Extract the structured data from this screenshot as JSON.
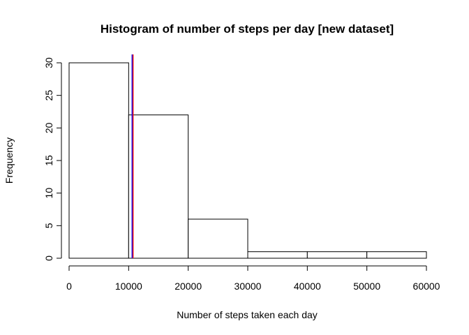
{
  "chart_data": {
    "type": "bar",
    "title": "Histogram of number of steps per day [new dataset]",
    "xlabel": "Number of steps taken each day",
    "ylabel": "Frequency",
    "bins": [
      {
        "start": 0,
        "end": 10000,
        "count": 30
      },
      {
        "start": 10000,
        "end": 20000,
        "count": 22
      },
      {
        "start": 20000,
        "end": 30000,
        "count": 6
      },
      {
        "start": 30000,
        "end": 40000,
        "count": 1
      },
      {
        "start": 40000,
        "end": 50000,
        "count": 1
      },
      {
        "start": 50000,
        "end": 60000,
        "count": 1
      }
    ],
    "xticks": [
      0,
      10000,
      20000,
      30000,
      40000,
      50000,
      60000
    ],
    "yticks": [
      0,
      5,
      10,
      15,
      20,
      25,
      30
    ],
    "xlim": [
      0,
      60000
    ],
    "ylim": [
      0,
      30
    ],
    "reference_lines": [
      {
        "x": 10580,
        "color": "#0000ff"
      },
      {
        "x": 10740,
        "color": "#ff0000"
      }
    ],
    "bar_fill": "#ffffff",
    "bar_edge": "#000000",
    "grid": false,
    "legend": "none"
  }
}
